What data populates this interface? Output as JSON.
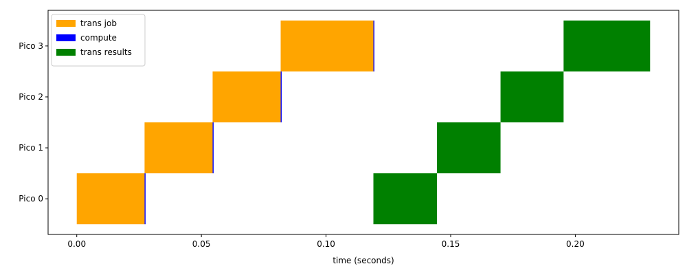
{
  "chart_data": {
    "type": "gantt",
    "xlabel": "time (seconds)",
    "ylabel": "",
    "title": "",
    "xlim": [
      -0.0115,
      0.2415
    ],
    "ylim": [
      -0.7,
      3.7
    ],
    "xticks": [
      0.0,
      0.05,
      0.1,
      0.15,
      0.2
    ],
    "xtick_labels": [
      "0.00",
      "0.05",
      "0.10",
      "0.15",
      "0.20"
    ],
    "categories": [
      "Pico 0",
      "Pico 1",
      "Pico 2",
      "Pico 3"
    ],
    "grid": false,
    "legend_position": "top-left",
    "series": [
      {
        "name": "trans job",
        "color": "#FFA500",
        "segments": [
          {
            "row": 0,
            "start": 0.0,
            "end": 0.0272
          },
          {
            "row": 1,
            "start": 0.0272,
            "end": 0.0545
          },
          {
            "row": 2,
            "start": 0.0545,
            "end": 0.0818
          },
          {
            "row": 3,
            "start": 0.0818,
            "end": 0.119
          }
        ]
      },
      {
        "name": "compute",
        "color": "#0000FF",
        "segments": [
          {
            "row": 0,
            "start": 0.0272,
            "end": 0.0276
          },
          {
            "row": 1,
            "start": 0.0545,
            "end": 0.0549
          },
          {
            "row": 2,
            "start": 0.0818,
            "end": 0.0822
          },
          {
            "row": 3,
            "start": 0.119,
            "end": 0.1194
          }
        ]
      },
      {
        "name": "trans results",
        "color": "#008000",
        "segments": [
          {
            "row": 0,
            "start": 0.119,
            "end": 0.1445
          },
          {
            "row": 1,
            "start": 0.1445,
            "end": 0.17
          },
          {
            "row": 2,
            "start": 0.17,
            "end": 0.1953
          },
          {
            "row": 3,
            "start": 0.1953,
            "end": 0.23
          }
        ]
      }
    ]
  }
}
